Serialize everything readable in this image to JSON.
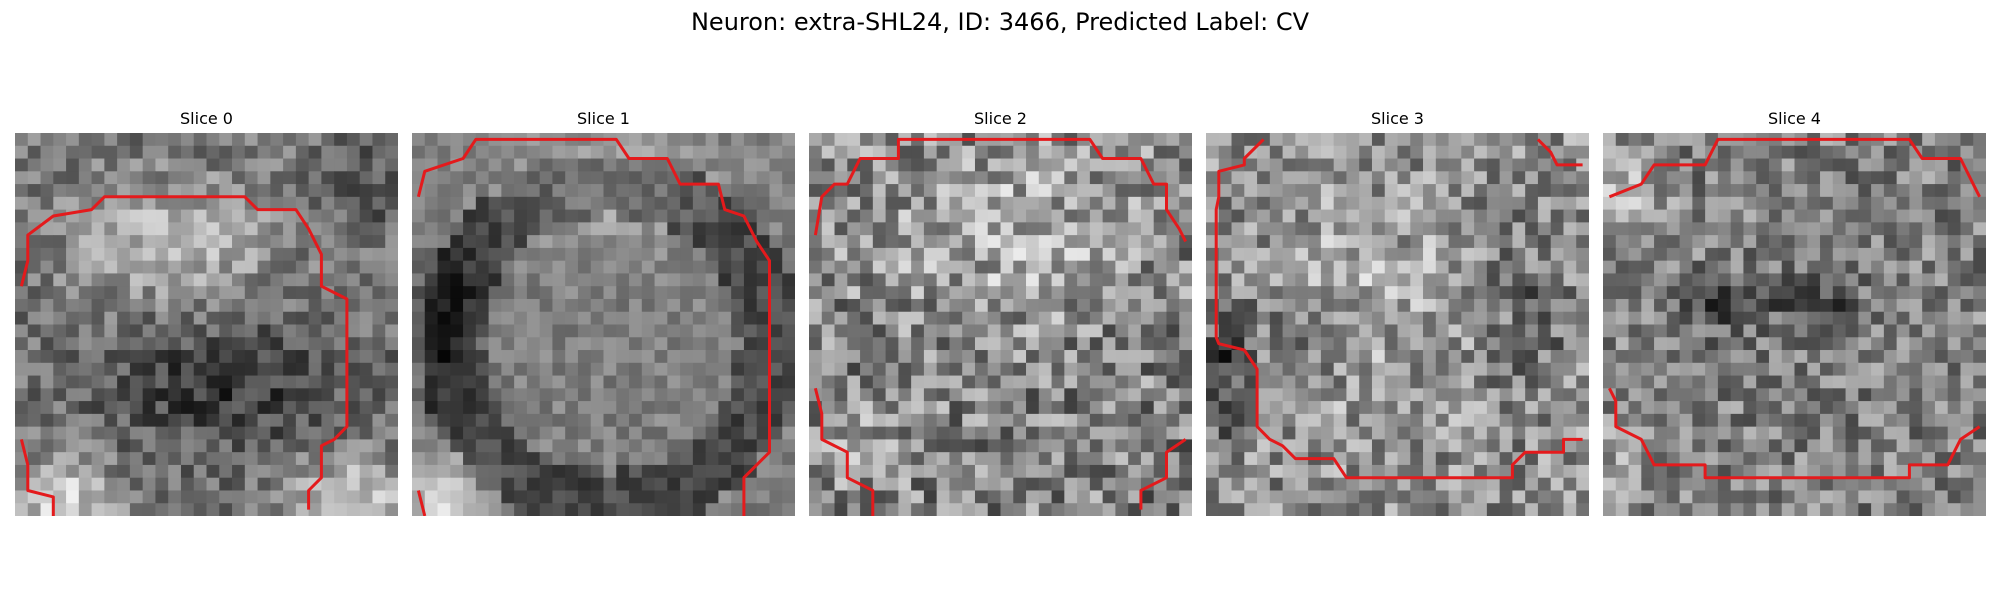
{
  "figure": {
    "title": "Neuron: extra-SHL24, ID: 3466, Predicted Label: CV"
  },
  "colors": {
    "contour": "#e41a1c",
    "colormap": "gray"
  },
  "slices": [
    {
      "title": "Slice 0",
      "pattern": "bright-upper-center, dark-lower-center, bright-bottom-corners"
    },
    {
      "title": "Slice 1",
      "pattern": "dark-ring, bright-top-center, soft-texture"
    },
    {
      "title": "Slice 2",
      "pattern": "noisy, bright-upper-half"
    },
    {
      "title": "Slice 3",
      "pattern": "noisy, dark-left-edge, bright-center"
    },
    {
      "title": "Slice 4",
      "pattern": "noisy, dark-center-blobs"
    }
  ]
}
